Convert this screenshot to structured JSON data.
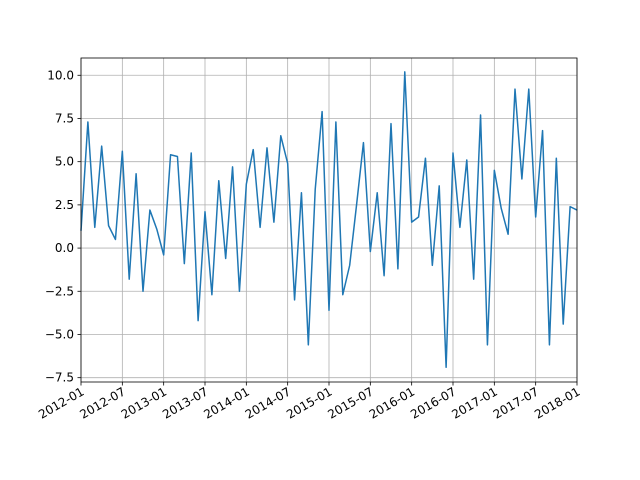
{
  "chart_data": {
    "type": "line",
    "x": [
      "2012-01",
      "2012-02",
      "2012-03",
      "2012-04",
      "2012-05",
      "2012-06",
      "2012-07",
      "2012-08",
      "2012-09",
      "2012-10",
      "2012-11",
      "2012-12",
      "2013-01",
      "2013-02",
      "2013-03",
      "2013-04",
      "2013-05",
      "2013-06",
      "2013-07",
      "2013-08",
      "2013-09",
      "2013-10",
      "2013-11",
      "2013-12",
      "2014-01",
      "2014-02",
      "2014-03",
      "2014-04",
      "2014-05",
      "2014-06",
      "2014-07",
      "2014-08",
      "2014-09",
      "2014-10",
      "2014-11",
      "2014-12",
      "2015-01",
      "2015-02",
      "2015-03",
      "2015-04",
      "2015-05",
      "2015-06",
      "2015-07",
      "2015-08",
      "2015-09",
      "2015-10",
      "2015-11",
      "2015-12",
      "2016-01",
      "2016-02",
      "2016-03",
      "2016-04",
      "2016-05",
      "2016-06",
      "2016-07",
      "2016-08",
      "2016-09",
      "2016-10",
      "2016-11",
      "2016-12",
      "2017-01",
      "2017-02",
      "2017-03",
      "2017-04",
      "2017-05",
      "2017-06",
      "2017-07",
      "2017-08",
      "2017-09",
      "2017-10",
      "2017-11",
      "2017-12",
      "2018-01"
    ],
    "series": [
      {
        "color": "#1f77b4",
        "values": [
          1.0,
          7.3,
          1.2,
          5.9,
          1.3,
          0.5,
          5.6,
          -1.8,
          4.3,
          -2.5,
          2.2,
          1.1,
          -0.4,
          5.4,
          5.3,
          -0.9,
          5.5,
          -4.2,
          2.1,
          -2.7,
          3.9,
          -0.6,
          4.7,
          -2.5,
          3.7,
          5.7,
          1.2,
          5.8,
          1.5,
          6.5,
          4.9,
          -3.0,
          3.2,
          -5.6,
          3.4,
          7.9,
          -3.6,
          7.3,
          -2.7,
          -1.0,
          2.5,
          6.1,
          -0.2,
          3.2,
          -1.6,
          7.2,
          -1.2,
          10.2,
          1.5,
          1.8,
          5.2,
          -1.0,
          3.6,
          -6.9,
          5.5,
          1.2,
          5.1,
          -1.8,
          7.7,
          -5.6,
          4.5,
          2.3,
          0.8,
          9.2,
          4.0,
          9.2,
          1.8,
          6.8,
          -5.6,
          5.2,
          -4.4,
          2.4,
          2.2
        ]
      }
    ],
    "xlim": [
      "2012-01",
      "2018-01"
    ],
    "xticks": [
      "2012-01",
      "2012-07",
      "2013-01",
      "2013-07",
      "2014-01",
      "2014-07",
      "2015-01",
      "2015-07",
      "2016-01",
      "2016-07",
      "2017-01",
      "2017-07",
      "2018-01"
    ],
    "ylim": [
      -7.75,
      11.0
    ],
    "yticks": [
      {
        "value": -7.5,
        "label": "−7.5"
      },
      {
        "value": -5.0,
        "label": "−5.0"
      },
      {
        "value": -2.5,
        "label": "−2.5"
      },
      {
        "value": 0,
        "label": "0.0"
      },
      2.5,
      {
        "value": 5,
        "label": "5.0"
      },
      7.5,
      {
        "value": 10,
        "label": "10.0"
      }
    ],
    "grid": true
  }
}
